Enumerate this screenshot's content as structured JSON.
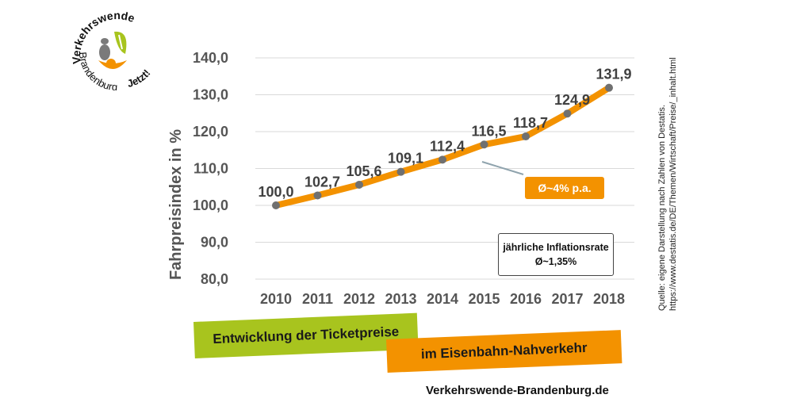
{
  "logo": {
    "text_top": "Verkehrswende",
    "text_bottom": "Brandenburg",
    "text_right": "Jetzt!",
    "colors": {
      "orange": "#f39200",
      "green": "#a8c41e",
      "gray": "#7a7a7a"
    }
  },
  "chart_data": {
    "type": "line",
    "categories": [
      "2010",
      "2011",
      "2012",
      "2013",
      "2014",
      "2015",
      "2016",
      "2017",
      "2018"
    ],
    "values": [
      100.0,
      102.7,
      105.6,
      109.1,
      112.4,
      116.5,
      118.7,
      124.9,
      131.9
    ],
    "value_labels": [
      "100,0",
      "102,7",
      "105,6",
      "109,1",
      "112,4",
      "116,5",
      "118,7",
      "124,9",
      "131,9"
    ],
    "y_ticks": [
      80,
      90,
      100,
      110,
      120,
      130,
      140
    ],
    "y_tick_labels": [
      "80,0",
      "90,0",
      "100,0",
      "110,0",
      "120,0",
      "130,0",
      "140,0"
    ],
    "ylim": [
      80,
      140
    ],
    "ylabel": "Fahrpreisindex in %",
    "xlabel": "",
    "grid": true,
    "line_color": "#f39200",
    "marker_color": "#707070"
  },
  "annotations": {
    "avg_growth": "Ø~4% p.a.",
    "inflation_title": "jährliche Inflationsrate",
    "inflation_value": "Ø~1,35%"
  },
  "source": {
    "line1": "Quelle: eigene Darstellung nach Zahlen von Destatis.",
    "line2": "https://www.destatis.de/DE/Themen/Wirtschaft/Preise/_inhalt.html"
  },
  "banner": {
    "line1": "Entwicklung der Ticketpreise",
    "line2": "im Eisenbahn-Nahverkehr",
    "colors": {
      "green": "#a8c41e",
      "orange": "#f39200"
    }
  },
  "website": "Verkehrswende-Brandenburg.de"
}
